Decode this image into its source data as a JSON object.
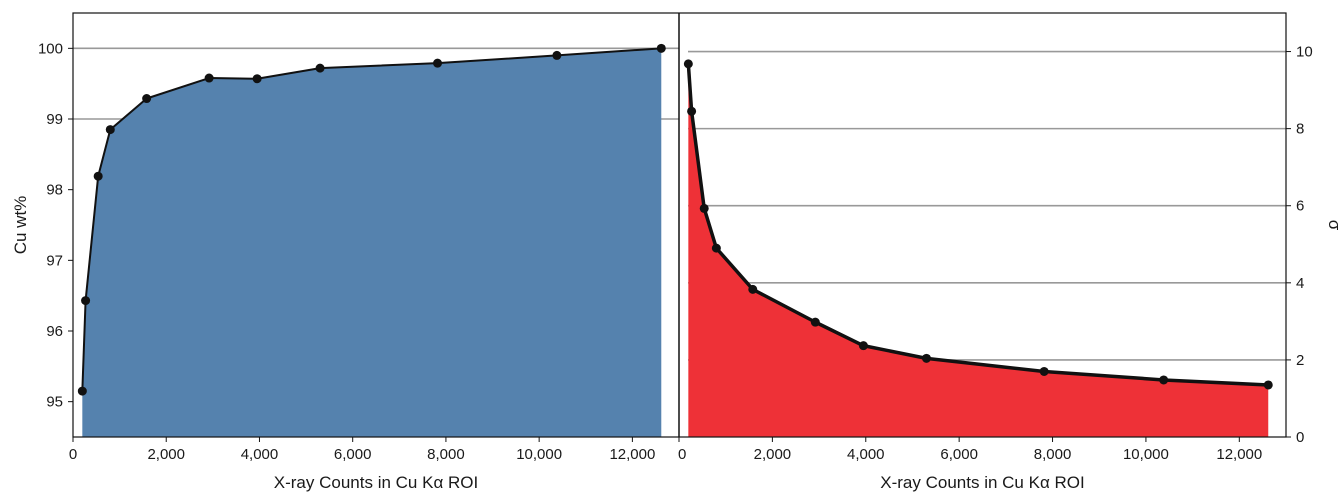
{
  "chart_data": [
    {
      "type": "area",
      "xlabel": "X-ray Counts in Cu Kα ROI",
      "ylabel": "Cu wt%",
      "xlim": [
        0,
        13000
      ],
      "ylim": [
        94.5,
        100.5
      ],
      "x_ticks": [
        0,
        2000,
        4000,
        6000,
        8000,
        10000,
        12000
      ],
      "x_tick_labels": [
        "0",
        "2,000",
        "4,000",
        "6,000",
        "8,000",
        "10,000",
        "12,000"
      ],
      "y_ticks": [
        95,
        96,
        97,
        98,
        99,
        100
      ],
      "y_tick_labels": [
        "95",
        "96",
        "97",
        "98",
        "99",
        "100"
      ],
      "reference_lines": [
        99,
        100
      ],
      "series": [
        {
          "x": [
            200,
            270,
            540,
            800,
            1580,
            2920,
            3950,
            5300,
            7820,
            10380,
            12620
          ],
          "y": [
            95.15,
            96.43,
            98.19,
            98.85,
            99.29,
            99.58,
            99.57,
            99.72,
            99.79,
            99.9,
            100.0
          ]
        }
      ],
      "fill_color": "#5582ae",
      "line_color": "#111111"
    },
    {
      "type": "area",
      "xlabel": "X-ray Counts in Cu Kα ROI",
      "ylabel": "σ",
      "y_axis_side": "right",
      "xlim": [
        0,
        13000
      ],
      "ylim": [
        0,
        11
      ],
      "x_ticks": [
        0,
        2000,
        4000,
        6000,
        8000,
        10000,
        12000
      ],
      "x_tick_labels": [
        "0",
        "2,000",
        "4,000",
        "6,000",
        "8,000",
        "10,000",
        "12,000"
      ],
      "y_ticks": [
        0,
        2,
        4,
        6,
        8,
        10
      ],
      "y_tick_labels": [
        "0",
        "2",
        "4",
        "6",
        "8",
        "10"
      ],
      "reference_lines": [
        2,
        4,
        6,
        8,
        10
      ],
      "series": [
        {
          "x": [
            200,
            270,
            540,
            800,
            1580,
            2920,
            3950,
            5300,
            7820,
            10380,
            12620
          ],
          "y": [
            9.68,
            8.45,
            5.93,
            4.9,
            3.83,
            2.98,
            2.37,
            2.04,
            1.7,
            1.48,
            1.35
          ]
        }
      ],
      "fill_color": "#ee3137",
      "line_color": "#111111"
    }
  ]
}
